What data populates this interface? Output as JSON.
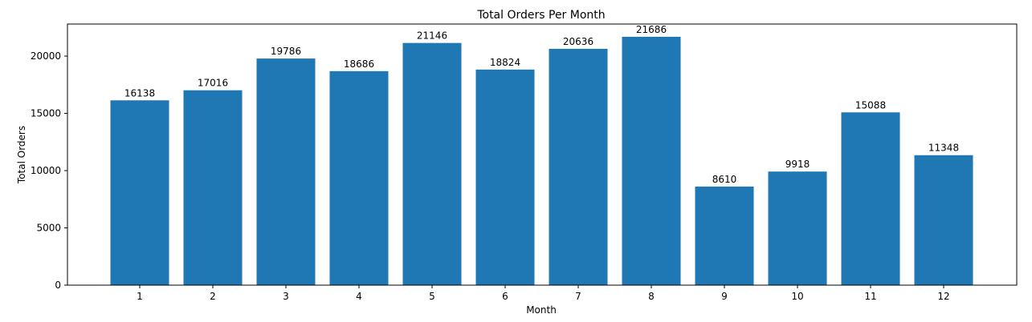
{
  "chart_data": {
    "type": "bar",
    "title": "Total Orders Per Month",
    "xlabel": "Month",
    "ylabel": "Total Orders",
    "categories": [
      "1",
      "2",
      "3",
      "4",
      "5",
      "6",
      "7",
      "8",
      "9",
      "10",
      "11",
      "12"
    ],
    "values": [
      16138,
      17016,
      19786,
      18686,
      21146,
      18824,
      20636,
      21686,
      8610,
      9918,
      15088,
      11348
    ],
    "data_labels": [
      "16138",
      "17016",
      "19786",
      "18686",
      "21146",
      "18824",
      "20636",
      "21686",
      "8610",
      "9918",
      "15088",
      "11348"
    ],
    "ylim": [
      0,
      22800
    ],
    "yticks": [
      0,
      5000,
      10000,
      15000,
      20000
    ],
    "ytick_labels": [
      "0",
      "5000",
      "10000",
      "15000",
      "20000"
    ],
    "bar_color": "#1f77b4",
    "grid": false,
    "legend": "none"
  }
}
